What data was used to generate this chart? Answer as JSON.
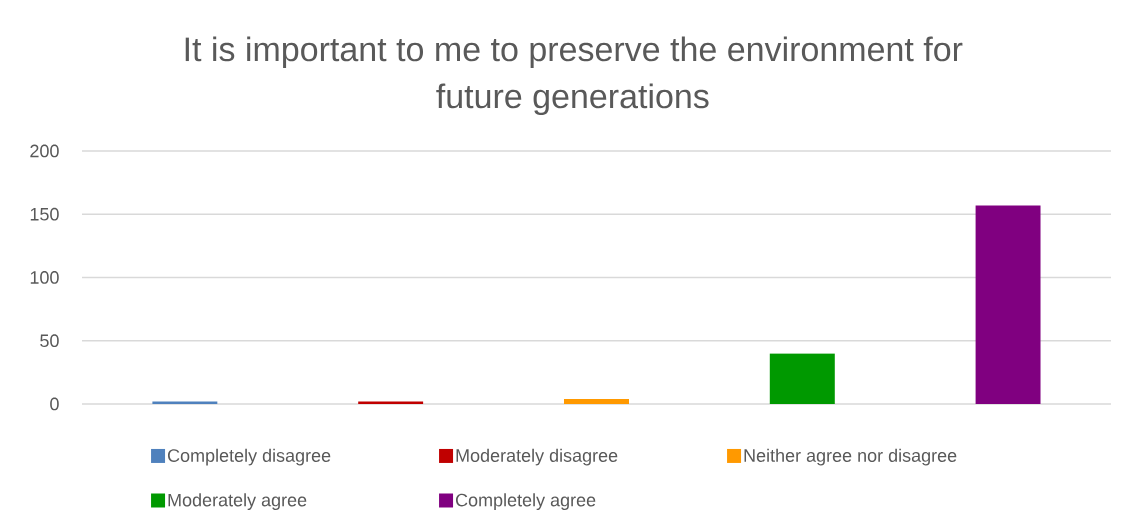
{
  "chart_data": {
    "type": "bar",
    "title": "It is important to me to preserve the environment for future generations",
    "categories": [
      null,
      null,
      null,
      null,
      null
    ],
    "series": [
      {
        "name": "Completely disagree",
        "color": "#4f81bd",
        "values": [
          2,
          null,
          null,
          null,
          null
        ]
      },
      {
        "name": "Moderately disagree",
        "color": "#c00000",
        "values": [
          null,
          2,
          null,
          null,
          null
        ]
      },
      {
        "name": "Neither agree nor disagree",
        "color": "#ff9900",
        "values": [
          null,
          null,
          4,
          null,
          null
        ]
      },
      {
        "name": "Moderately agree",
        "color": "#009900",
        "values": [
          null,
          null,
          null,
          40,
          null
        ]
      },
      {
        "name": "Completely agree",
        "color": "#800080",
        "values": [
          null,
          null,
          null,
          null,
          157
        ]
      }
    ],
    "ylim": [
      0,
      200
    ],
    "yticks": [
      0,
      50,
      100,
      150,
      200
    ],
    "grid": "y",
    "legend": "bottom"
  }
}
